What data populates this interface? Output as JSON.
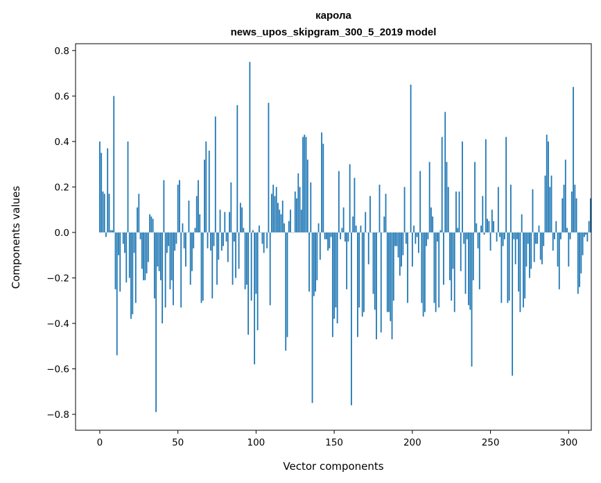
{
  "chart_data": {
    "type": "bar",
    "title_line1": "карола",
    "title_line2": "news_upos_skipgram_300_5_2019 model",
    "xlabel": "Vector components",
    "ylabel": "Components values",
    "xlim": [
      -15.5,
      314.5
    ],
    "ylim": [
      -0.87,
      0.83
    ],
    "xticks": [
      0,
      50,
      100,
      150,
      200,
      250,
      300
    ],
    "xtick_labels": [
      "0",
      "50",
      "100",
      "150",
      "200",
      "250",
      "300"
    ],
    "yticks": [
      0.8,
      0.6,
      0.4,
      0.2,
      0.0,
      -0.2,
      -0.4,
      -0.6,
      -0.8
    ],
    "ytick_labels": [
      "0.8",
      "0.6",
      "0.4",
      "0.2",
      "0.0",
      "−0.2",
      "−0.4",
      "−0.6",
      "−0.8"
    ],
    "bar_color": "#1f77b4",
    "grid": false,
    "values": [
      0.4,
      0.35,
      0.18,
      0.17,
      -0.02,
      0.37,
      0.17,
      0.01,
      0.01,
      0.6,
      -0.25,
      -0.54,
      -0.1,
      -0.26,
      0.0,
      -0.05,
      -0.09,
      -0.22,
      0.4,
      -0.2,
      -0.38,
      -0.36,
      -0.09,
      -0.31,
      0.11,
      0.17,
      -0.03,
      -0.16,
      -0.21,
      -0.21,
      -0.18,
      -0.13,
      0.08,
      0.07,
      0.06,
      -0.29,
      -0.79,
      -0.15,
      -0.17,
      -0.21,
      -0.4,
      0.23,
      -0.33,
      -0.09,
      -0.06,
      -0.25,
      -0.21,
      -0.32,
      -0.08,
      -0.05,
      0.21,
      0.23,
      -0.33,
      0.04,
      -0.07,
      -0.15,
      0.0,
      0.14,
      -0.23,
      -0.17,
      -0.07,
      0.02,
      0.16,
      0.23,
      0.08,
      -0.31,
      -0.3,
      0.32,
      0.4,
      -0.07,
      0.36,
      -0.08,
      -0.29,
      -0.06,
      0.51,
      -0.23,
      -0.12,
      0.1,
      -0.08,
      -0.06,
      0.09,
      -0.04,
      -0.13,
      0.09,
      0.22,
      -0.23,
      -0.04,
      -0.2,
      0.56,
      -0.16,
      0.13,
      0.11,
      0.02,
      -0.25,
      -0.23,
      -0.45,
      0.75,
      -0.3,
      0.01,
      -0.58,
      -0.27,
      -0.43,
      0.03,
      0.0,
      -0.05,
      -0.09,
      0.0,
      -0.07,
      0.57,
      -0.32,
      0.17,
      0.21,
      0.16,
      0.2,
      0.13,
      0.1,
      0.08,
      0.14,
      0.04,
      -0.52,
      -0.46,
      0.05,
      0.1,
      0.0,
      0.0,
      0.18,
      0.15,
      0.26,
      0.2,
      0.1,
      0.42,
      0.43,
      0.42,
      0.32,
      -0.26,
      0.22,
      -0.75,
      -0.28,
      -0.26,
      -0.21,
      0.04,
      -0.12,
      0.44,
      0.39,
      -0.03,
      -0.03,
      -0.08,
      -0.07,
      -0.02,
      -0.46,
      -0.38,
      -0.33,
      -0.4,
      0.27,
      -0.03,
      0.02,
      0.11,
      -0.04,
      -0.25,
      -0.04,
      0.3,
      -0.76,
      0.07,
      0.24,
      0.03,
      -0.46,
      -0.33,
      0.03,
      -0.37,
      -0.35,
      0.09,
      0.0,
      -0.14,
      0.16,
      0.0,
      -0.27,
      -0.34,
      -0.47,
      0.0,
      0.21,
      -0.44,
      0.0,
      0.07,
      0.17,
      -0.35,
      -0.35,
      -0.39,
      -0.47,
      -0.3,
      -0.06,
      -0.06,
      -0.11,
      -0.19,
      -0.15,
      -0.1,
      0.2,
      -0.05,
      -0.31,
      0.0,
      0.65,
      -0.15,
      0.03,
      -0.05,
      -0.02,
      -0.09,
      0.27,
      -0.31,
      -0.37,
      -0.35,
      -0.06,
      -0.03,
      0.31,
      0.11,
      0.07,
      -0.31,
      -0.35,
      -0.04,
      -0.33,
      0.01,
      0.42,
      -0.23,
      0.53,
      0.31,
      0.2,
      -0.21,
      -0.3,
      -0.16,
      -0.35,
      0.18,
      0.02,
      0.18,
      -0.17,
      0.4,
      -0.05,
      -0.27,
      -0.03,
      -0.32,
      -0.34,
      -0.59,
      -0.21,
      0.31,
      0.04,
      -0.07,
      -0.25,
      0.03,
      0.16,
      -0.01,
      0.41,
      0.06,
      0.05,
      -0.08,
      0.1,
      0.05,
      0.0,
      -0.04,
      0.2,
      -0.02,
      -0.31,
      -0.06,
      -0.03,
      0.42,
      -0.31,
      -0.3,
      0.21,
      -0.63,
      -0.03,
      -0.14,
      -0.03,
      -0.26,
      -0.35,
      0.08,
      -0.33,
      -0.29,
      -0.15,
      -0.05,
      -0.2,
      -0.16,
      0.19,
      -0.13,
      -0.05,
      -0.05,
      0.03,
      -0.12,
      -0.14,
      -0.06,
      0.25,
      0.43,
      0.4,
      0.2,
      0.25,
      -0.08,
      -0.03,
      0.05,
      -0.15,
      -0.25,
      -0.03,
      0.15,
      0.21,
      0.32,
      0.02,
      -0.15,
      -0.03,
      0.18,
      0.64,
      0.21,
      0.15,
      -0.27,
      -0.24,
      -0.18,
      -0.1,
      -0.02,
      -0.01,
      -0.04,
      0.05,
      0.15
    ]
  }
}
